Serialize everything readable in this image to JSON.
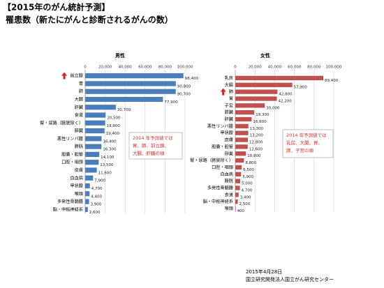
{
  "header": {
    "title": "【2015年のがん統計予測】",
    "subtitle": "罹患数（新たにがんと診断されるがんの数）"
  },
  "chart_data": [
    {
      "type": "barh",
      "title": "男性",
      "color": "#4a7ebb",
      "categories": [
        "前立腺",
        "胃",
        "肺",
        "大腸",
        "肝臓",
        "食道",
        "腎・尿路（膀胱除く）",
        "膵臓",
        "悪性リンパ腫",
        "膀胱",
        "胆嚢・胆管",
        "口腔・咽頭",
        "皮膚",
        "白血病",
        "甲状腺",
        "喉頭",
        "多発性骨髄腫",
        "脳・中枢神経系"
      ],
      "values": [
        98400,
        90800,
        90700,
        77900,
        30700,
        20500,
        19900,
        19400,
        16400,
        16300,
        14100,
        13500,
        11600,
        7900,
        4700,
        4400,
        3900,
        2600
      ],
      "value_labels": [
        "98,400",
        "90,800",
        "90,700",
        "77,900",
        "30,700",
        "20,500",
        "19,900",
        "19,400",
        "16,400",
        "16,300",
        "14,100",
        "13,500",
        "11,600",
        "7,900",
        "4,700",
        "4,400",
        "3,900",
        "2,600"
      ],
      "xlim": [
        0,
        100000
      ],
      "xticks": [
        0,
        {
          "value": 20000,
          "label": "20,000"
        },
        {
          "value": 40000,
          "label": "40,000"
        },
        {
          "value": 60000,
          "label": "60,000"
        },
        {
          "value": 80000,
          "label": "80,000"
        },
        {
          "value": 100000,
          "label": "100,000"
        }
      ],
      "grid": true,
      "annotation": [
        "2014 年予測値では",
        "胃、肺、前立腺、",
        "大腸、肝臓の順"
      ]
    },
    {
      "type": "barh",
      "title": "女性",
      "color": "#c0504d",
      "categories": [
        "乳房",
        "大腸",
        "肺",
        "胃",
        "子宮",
        "膵臓",
        "肝臓",
        "悪性リンパ腫",
        "甲状腺",
        "皮膚",
        "胆嚢・胆管",
        "卵巣",
        "腎・尿路（膀胱除く）",
        "口腔・咽頭",
        "白血病",
        "膀胱",
        "多発性骨髄腫",
        "食道",
        "脳・中枢神経系",
        "喉頭"
      ],
      "values": [
        89400,
        57900,
        42800,
        42200,
        30000,
        19300,
        16600,
        13300,
        13200,
        12800,
        12600,
        10800,
        8800,
        6500,
        5900,
        5000,
        4700,
        3400,
        2500,
        400
      ],
      "value_labels": [
        "89,400",
        "57,900",
        "42,800",
        "42,200",
        "30,000",
        "19,300",
        "16,600",
        "13,300",
        "13,200",
        "12,800",
        "12,600",
        "10,800",
        "8,800",
        "6,500",
        "5,900",
        "5,000",
        "4,700",
        "3,400",
        "2,500",
        "400"
      ],
      "xlim": [
        0,
        100000
      ],
      "xticks": [
        0,
        {
          "value": 20000,
          "label": "20,000"
        },
        {
          "value": 40000,
          "label": "40,000"
        },
        {
          "value": 60000,
          "label": "60,000"
        },
        {
          "value": 80000,
          "label": "80,000"
        },
        {
          "value": 100000,
          "label": "100,000"
        }
      ],
      "grid": true,
      "annotation": [
        "2014 年予測値では",
        "乳房、大腸、胃、",
        "肺、子宮の順"
      ]
    }
  ],
  "footer": {
    "date": "2015年4月28日",
    "organization": "国立研究開発法人国立がん研究センター"
  }
}
